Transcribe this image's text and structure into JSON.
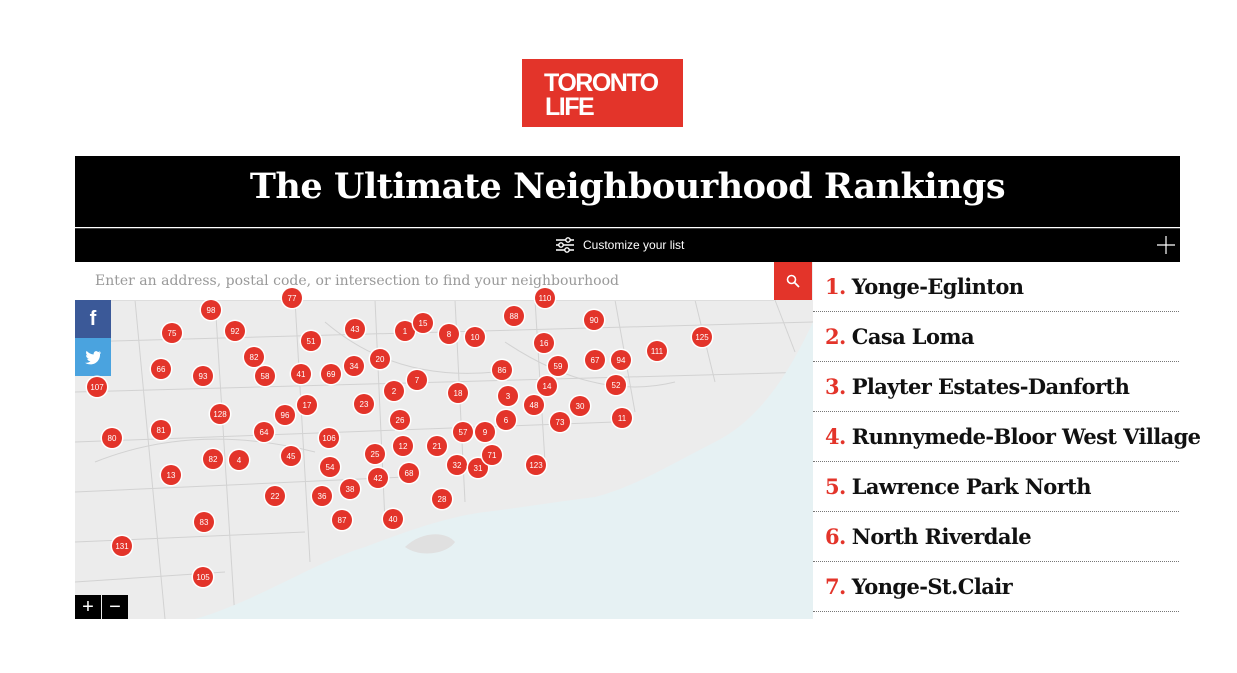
{
  "logo": {
    "line1": "TORONTO",
    "line2": "LIFE",
    "color": "#e3342a"
  },
  "header": {
    "title": "The Ultimate Neighbourhood Rankings"
  },
  "customize": {
    "label": "Customize your list",
    "icon": "sliders-icon",
    "expand_icon": "plus-icon"
  },
  "search": {
    "placeholder": "Enter an address, postal code, or intersection to find your neighbourhood",
    "button_icon": "search-icon"
  },
  "social": {
    "facebook": "f",
    "twitter_icon": "twitter-icon"
  },
  "map": {
    "water_color": "#e6f1f3",
    "land_color": "#ececec",
    "marker_color": "#e3342a",
    "zoom_in": "+",
    "zoom_out": "−",
    "markers": [
      "98",
      "75",
      "92",
      "51",
      "43",
      "1",
      "15",
      "8",
      "10",
      "88",
      "90",
      "125",
      "82",
      "66",
      "93",
      "58",
      "41",
      "69",
      "34",
      "20",
      "86",
      "16",
      "59",
      "67",
      "94",
      "111",
      "107",
      "128",
      "96",
      "17",
      "23",
      "7",
      "2",
      "18",
      "3",
      "14",
      "52",
      "48",
      "30",
      "80",
      "81",
      "64",
      "106",
      "26",
      "12",
      "21",
      "57",
      "9",
      "6",
      "73",
      "11",
      "82",
      "4",
      "45",
      "54",
      "25",
      "42",
      "68",
      "32",
      "31",
      "71",
      "123",
      "13",
      "22",
      "36",
      "38",
      "28",
      "83",
      "87",
      "40",
      "131",
      "105",
      "77",
      "110"
    ]
  },
  "rankings": [
    {
      "num": "1.",
      "name": "Yonge-Eglinton"
    },
    {
      "num": "2.",
      "name": "Casa Loma"
    },
    {
      "num": "3.",
      "name": "Playter Estates-Danforth"
    },
    {
      "num": "4.",
      "name": "Runnymede-Bloor West Village"
    },
    {
      "num": "5.",
      "name": "Lawrence Park North"
    },
    {
      "num": "6.",
      "name": "North Riverdale"
    },
    {
      "num": "7.",
      "name": "Yonge-St.Clair"
    }
  ]
}
